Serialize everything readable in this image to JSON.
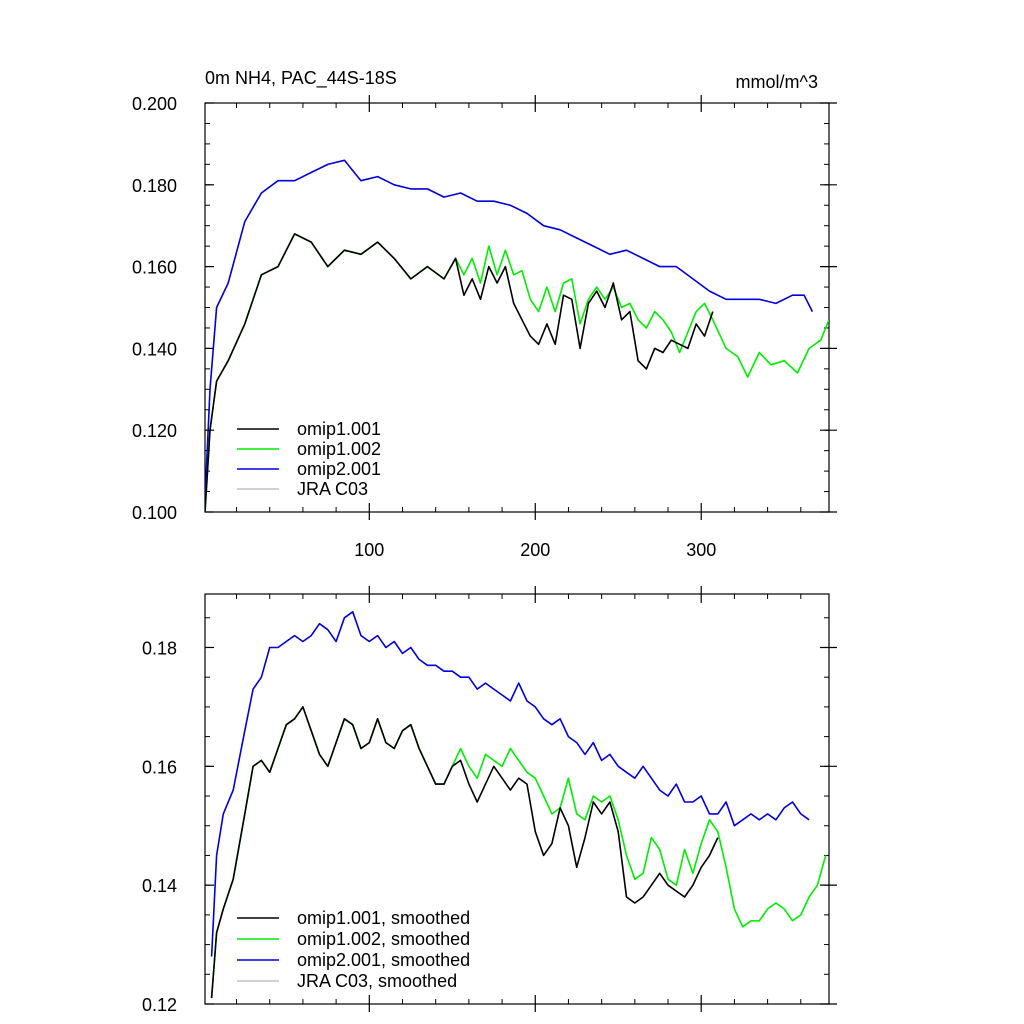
{
  "chart_data": [
    {
      "type": "line",
      "title": "0m NH4, PAC_44S-18S",
      "units": "mmol/m^3",
      "xlabel": "",
      "ylabel": "",
      "xlim": [
        1,
        377
      ],
      "ylim": [
        0.1,
        0.2
      ],
      "xticks": [
        100,
        200,
        300
      ],
      "xtick_labels": [
        "100",
        "200",
        "300"
      ],
      "yticks": [
        0.1,
        0.12,
        0.14,
        0.16,
        0.18,
        0.2
      ],
      "ytick_labels": [
        "0.100",
        "0.120",
        "0.140",
        "0.160",
        "0.180",
        "0.200"
      ],
      "legend_position": "bottom-left",
      "series": [
        {
          "name": "omip1.001",
          "color": "#000000",
          "x": [
            1,
            4,
            8,
            15,
            25,
            35,
            45,
            55,
            65,
            75,
            85,
            95,
            105,
            115,
            125,
            135,
            145,
            152,
            157,
            162,
            167,
            172,
            177,
            182,
            187,
            192,
            197,
            202,
            207,
            212,
            217,
            222,
            227,
            232,
            237,
            242,
            247,
            252,
            257,
            262,
            267,
            272,
            277,
            282,
            287,
            292,
            297,
            302,
            307
          ],
          "values": [
            0.1,
            0.12,
            0.132,
            0.137,
            0.146,
            0.158,
            0.16,
            0.168,
            0.166,
            0.16,
            0.164,
            0.163,
            0.166,
            0.162,
            0.157,
            0.16,
            0.157,
            0.162,
            0.153,
            0.157,
            0.152,
            0.16,
            0.156,
            0.16,
            0.151,
            0.147,
            0.143,
            0.141,
            0.146,
            0.141,
            0.153,
            0.152,
            0.14,
            0.151,
            0.154,
            0.15,
            0.156,
            0.147,
            0.149,
            0.137,
            0.135,
            0.14,
            0.139,
            0.142,
            0.141,
            0.14,
            0.146,
            0.143,
            0.149
          ]
        },
        {
          "name": "omip1.002",
          "color": "#00ee00",
          "x": [
            1,
            4,
            8,
            15,
            25,
            35,
            45,
            55,
            65,
            75,
            85,
            95,
            105,
            115,
            125,
            135,
            145,
            152,
            157,
            162,
            167,
            172,
            177,
            182,
            187,
            192,
            197,
            202,
            207,
            212,
            217,
            222,
            227,
            232,
            237,
            242,
            247,
            252,
            257,
            262,
            267,
            272,
            277,
            282,
            287,
            292,
            297,
            302,
            307,
            315,
            322,
            328,
            335,
            342,
            350,
            358,
            365,
            372,
            377
          ],
          "values": [
            0.1,
            0.12,
            0.132,
            0.137,
            0.146,
            0.158,
            0.16,
            0.168,
            0.166,
            0.16,
            0.164,
            0.163,
            0.166,
            0.162,
            0.157,
            0.16,
            0.157,
            0.162,
            0.158,
            0.162,
            0.156,
            0.165,
            0.158,
            0.164,
            0.158,
            0.159,
            0.152,
            0.149,
            0.155,
            0.149,
            0.156,
            0.157,
            0.146,
            0.152,
            0.155,
            0.152,
            0.155,
            0.15,
            0.151,
            0.147,
            0.145,
            0.149,
            0.147,
            0.144,
            0.139,
            0.144,
            0.149,
            0.151,
            0.147,
            0.14,
            0.138,
            0.133,
            0.139,
            0.136,
            0.137,
            0.134,
            0.14,
            0.142,
            0.147
          ]
        },
        {
          "name": "omip2.001",
          "color": "#0000dd",
          "x": [
            1,
            4,
            8,
            15,
            25,
            35,
            45,
            55,
            65,
            75,
            85,
            95,
            105,
            115,
            125,
            135,
            145,
            155,
            165,
            175,
            185,
            195,
            205,
            215,
            225,
            235,
            245,
            255,
            265,
            275,
            285,
            295,
            305,
            315,
            325,
            335,
            345,
            355,
            362,
            367
          ],
          "values": [
            0.103,
            0.13,
            0.15,
            0.156,
            0.171,
            0.178,
            0.181,
            0.181,
            0.183,
            0.185,
            0.186,
            0.181,
            0.182,
            0.18,
            0.179,
            0.179,
            0.177,
            0.178,
            0.176,
            0.176,
            0.175,
            0.173,
            0.17,
            0.169,
            0.167,
            0.165,
            0.163,
            0.164,
            0.162,
            0.16,
            0.16,
            0.157,
            0.154,
            0.152,
            0.152,
            0.152,
            0.151,
            0.153,
            0.153,
            0.149
          ]
        },
        {
          "name": "JRA C03",
          "color": "#c0c0c0",
          "x": [],
          "values": []
        }
      ]
    },
    {
      "type": "line",
      "title": "",
      "xlabel": "",
      "ylabel": "",
      "xlim": [
        1,
        377
      ],
      "ylim": [
        0.12,
        0.189
      ],
      "xticks": [
        100,
        200,
        300
      ],
      "xtick_labels": [
        "",
        "",
        ""
      ],
      "yticks": [
        0.12,
        0.14,
        0.16,
        0.18
      ],
      "ytick_labels": [
        "0.12",
        "0.14",
        "0.16",
        "0.18"
      ],
      "legend_position": "bottom-left",
      "series": [
        {
          "name": "omip1.001, smoothed",
          "color": "#000000",
          "x": [
            5,
            8,
            12,
            18,
            25,
            30,
            35,
            40,
            45,
            50,
            55,
            60,
            65,
            70,
            75,
            80,
            85,
            90,
            95,
            100,
            105,
            110,
            115,
            120,
            125,
            130,
            135,
            140,
            145,
            150,
            155,
            160,
            165,
            170,
            175,
            180,
            185,
            190,
            195,
            200,
            205,
            210,
            215,
            220,
            225,
            230,
            235,
            240,
            245,
            250,
            255,
            260,
            265,
            270,
            275,
            280,
            285,
            290,
            295,
            300,
            305,
            310
          ],
          "values": [
            0.121,
            0.132,
            0.136,
            0.141,
            0.152,
            0.16,
            0.161,
            0.159,
            0.163,
            0.167,
            0.168,
            0.17,
            0.166,
            0.162,
            0.16,
            0.164,
            0.168,
            0.167,
            0.163,
            0.164,
            0.168,
            0.164,
            0.163,
            0.166,
            0.167,
            0.163,
            0.16,
            0.157,
            0.157,
            0.16,
            0.161,
            0.157,
            0.154,
            0.157,
            0.16,
            0.158,
            0.156,
            0.158,
            0.157,
            0.149,
            0.145,
            0.147,
            0.153,
            0.15,
            0.143,
            0.148,
            0.154,
            0.152,
            0.154,
            0.149,
            0.138,
            0.137,
            0.138,
            0.14,
            0.142,
            0.14,
            0.139,
            0.138,
            0.14,
            0.143,
            0.145,
            0.148
          ]
        },
        {
          "name": "omip1.002, smoothed",
          "color": "#00ee00",
          "x": [
            5,
            8,
            12,
            18,
            25,
            30,
            35,
            40,
            45,
            50,
            55,
            60,
            65,
            70,
            75,
            80,
            85,
            90,
            95,
            100,
            105,
            110,
            115,
            120,
            125,
            130,
            135,
            140,
            145,
            150,
            155,
            160,
            165,
            170,
            175,
            180,
            185,
            190,
            195,
            200,
            205,
            210,
            215,
            220,
            225,
            230,
            235,
            240,
            245,
            250,
            255,
            260,
            265,
            270,
            275,
            280,
            285,
            290,
            295,
            300,
            305,
            310,
            315,
            320,
            325,
            330,
            335,
            340,
            345,
            350,
            355,
            360,
            365,
            370,
            375
          ],
          "values": [
            0.121,
            0.132,
            0.136,
            0.141,
            0.152,
            0.16,
            0.161,
            0.159,
            0.163,
            0.167,
            0.168,
            0.17,
            0.166,
            0.162,
            0.16,
            0.164,
            0.168,
            0.167,
            0.163,
            0.164,
            0.168,
            0.164,
            0.163,
            0.166,
            0.167,
            0.163,
            0.16,
            0.157,
            0.157,
            0.16,
            0.163,
            0.16,
            0.158,
            0.162,
            0.161,
            0.16,
            0.163,
            0.161,
            0.159,
            0.158,
            0.155,
            0.152,
            0.153,
            0.158,
            0.152,
            0.151,
            0.155,
            0.154,
            0.155,
            0.151,
            0.145,
            0.141,
            0.142,
            0.148,
            0.146,
            0.141,
            0.14,
            0.146,
            0.142,
            0.147,
            0.151,
            0.149,
            0.143,
            0.136,
            0.133,
            0.134,
            0.134,
            0.136,
            0.137,
            0.136,
            0.134,
            0.135,
            0.138,
            0.14,
            0.145
          ]
        },
        {
          "name": "omip2.001, smoothed",
          "color": "#0000dd",
          "x": [
            5,
            8,
            12,
            18,
            25,
            30,
            35,
            40,
            45,
            50,
            55,
            60,
            65,
            70,
            75,
            80,
            85,
            90,
            95,
            100,
            105,
            110,
            115,
            120,
            125,
            130,
            135,
            140,
            145,
            150,
            155,
            160,
            165,
            170,
            175,
            180,
            185,
            190,
            195,
            200,
            205,
            210,
            215,
            220,
            225,
            230,
            235,
            240,
            245,
            250,
            255,
            260,
            265,
            270,
            275,
            280,
            285,
            290,
            295,
            300,
            305,
            310,
            315,
            320,
            325,
            330,
            335,
            340,
            345,
            350,
            355,
            360,
            365
          ],
          "values": [
            0.128,
            0.145,
            0.152,
            0.156,
            0.166,
            0.173,
            0.175,
            0.18,
            0.18,
            0.181,
            0.182,
            0.181,
            0.182,
            0.184,
            0.183,
            0.181,
            0.185,
            0.186,
            0.182,
            0.181,
            0.182,
            0.18,
            0.181,
            0.179,
            0.18,
            0.178,
            0.177,
            0.177,
            0.176,
            0.176,
            0.175,
            0.175,
            0.173,
            0.174,
            0.173,
            0.172,
            0.171,
            0.174,
            0.171,
            0.17,
            0.168,
            0.167,
            0.168,
            0.165,
            0.164,
            0.162,
            0.164,
            0.161,
            0.162,
            0.16,
            0.159,
            0.158,
            0.16,
            0.158,
            0.156,
            0.155,
            0.157,
            0.154,
            0.154,
            0.155,
            0.152,
            0.152,
            0.154,
            0.15,
            0.151,
            0.152,
            0.151,
            0.152,
            0.151,
            0.153,
            0.154,
            0.152,
            0.151
          ]
        },
        {
          "name": "JRA C03, smoothed",
          "color": "#c0c0c0",
          "x": [],
          "values": []
        }
      ]
    }
  ]
}
